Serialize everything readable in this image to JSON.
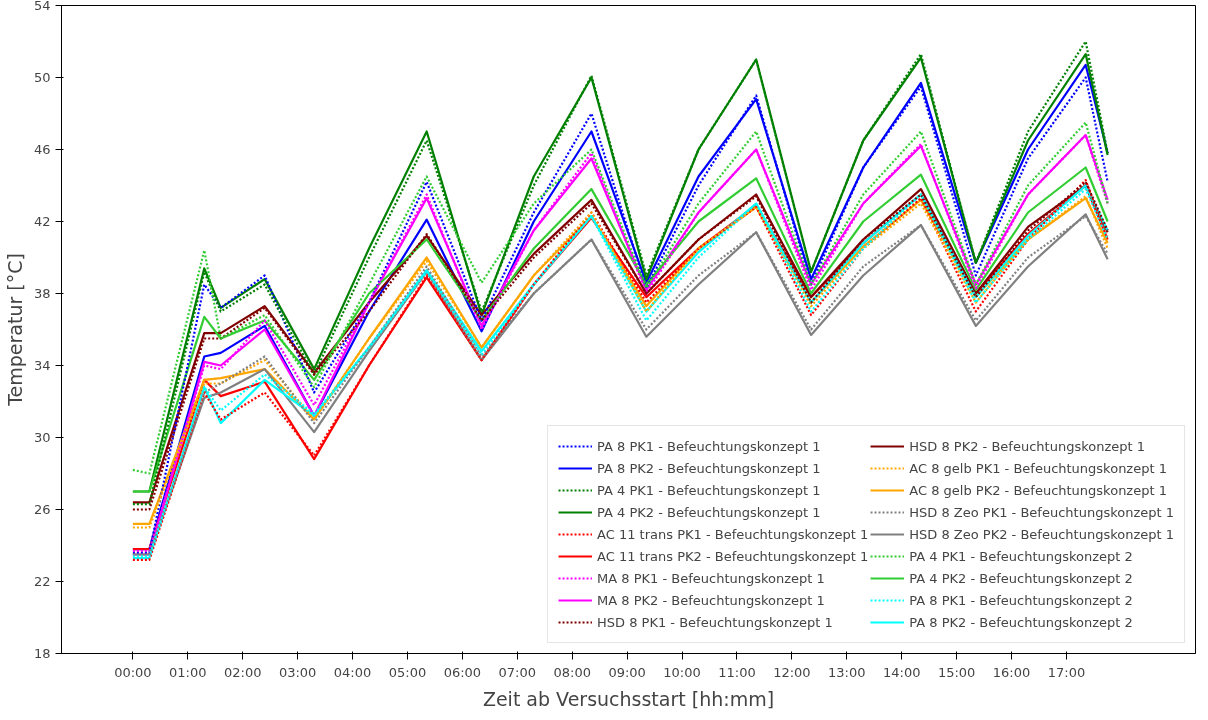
{
  "chart_data": {
    "type": "line",
    "xlabel": "Zeit ab Versuchsstart [hh:mm]",
    "ylabel": "Temperatur [°C]",
    "x": [
      0,
      0.3,
      1.3,
      1.6,
      2.4,
      3.3,
      4.3,
      5.35,
      6.35,
      7.3,
      8.35,
      9.35,
      10.3,
      11.35,
      12.35,
      13.3,
      14.35,
      15.35,
      16.3,
      17.35,
      17.75
    ],
    "xlim": [
      -1.3,
      19.35
    ],
    "ylim": [
      18,
      54
    ],
    "yticks": [
      18,
      22,
      26,
      30,
      34,
      38,
      42,
      46,
      50,
      54
    ],
    "xticks": [
      {
        "value": 0,
        "label": "00:00"
      },
      {
        "value": 1,
        "label": "01:00"
      },
      {
        "value": 2,
        "label": "02:00"
      },
      {
        "value": 3,
        "label": "03:00"
      },
      {
        "value": 4,
        "label": "04:00"
      },
      {
        "value": 5,
        "label": "05:00"
      },
      {
        "value": 6,
        "label": "06:00"
      },
      {
        "value": 7,
        "label": "07:00"
      },
      {
        "value": 8,
        "label": "08:00"
      },
      {
        "value": 9,
        "label": "09:00"
      },
      {
        "value": 10,
        "label": "10:00"
      },
      {
        "value": 11,
        "label": "11:00"
      },
      {
        "value": 12,
        "label": "12:00"
      },
      {
        "value": 13,
        "label": "13:00"
      },
      {
        "value": 14,
        "label": "14:00"
      },
      {
        "value": 15,
        "label": "15:00"
      },
      {
        "value": 16,
        "label": "16:00"
      },
      {
        "value": 17,
        "label": "17:00"
      }
    ],
    "grid": false,
    "legend": "bottom right",
    "line_style": "solid",
    "series": [
      {
        "name": "PA 8 PK1 - Befeuchtungskonzept 1",
        "color": "#0000ff",
        "line_style": "dotted",
        "values": [
          23.6,
          23.6,
          38.5,
          37.2,
          39,
          32.5,
          37.5,
          44.2,
          36.5,
          42.5,
          48,
          38.3,
          44,
          49,
          38.5,
          45,
          49.5,
          39,
          45.5,
          50,
          44.2
        ]
      },
      {
        "name": "PA 8 PK2 - Befeuchtungskonzept 1",
        "color": "#0000ff",
        "values": [
          23.8,
          23.8,
          34.5,
          34.7,
          36.2,
          31.2,
          37,
          42.1,
          35.9,
          42,
          47,
          38.6,
          44.5,
          48.8,
          38.8,
          45,
          49.7,
          39.7,
          46,
          50.7,
          45.8
        ]
      },
      {
        "name": "PA 4 PK1 - Befeuchtungskonzept 1",
        "color": "#008000",
        "line_style": "dotted",
        "values": [
          26.3,
          26.3,
          39.2,
          37,
          38.5,
          33.5,
          40,
          46.5,
          37,
          44,
          50.1,
          39,
          46,
          51,
          39.2,
          46.5,
          51.3,
          39.7,
          47,
          52,
          45.8
        ]
      },
      {
        "name": "PA 4 PK2 - Befeuchtungskonzept 1",
        "color": "#008000",
        "values": [
          27,
          27,
          39.4,
          37.2,
          38.8,
          33.8,
          40.5,
          47,
          36.8,
          44.5,
          50,
          38.8,
          46,
          51,
          39.2,
          46.5,
          51.1,
          39.7,
          46.5,
          51.3,
          45.7
        ]
      },
      {
        "name": "AC 11 trans PK1 - Befeuchtungskonzept 1",
        "color": "#ff0000",
        "line_style": "dotted",
        "values": [
          23.2,
          23.2,
          32.5,
          31,
          32.5,
          29,
          34,
          39,
          34.3,
          38.5,
          42.5,
          37.5,
          40.5,
          42.8,
          36.8,
          40.5,
          43.3,
          37,
          41,
          44.3,
          41
        ]
      },
      {
        "name": "AC 11 trans PK2 - Befeuchtungskonzept 1",
        "color": "#ff0000",
        "values": [
          23.8,
          23.8,
          33.2,
          32.3,
          33.1,
          28.8,
          34,
          38.9,
          34.3,
          38.5,
          42.2,
          37.8,
          40.5,
          42.9,
          37.8,
          40.8,
          43.5,
          38,
          41.3,
          44,
          41
        ]
      },
      {
        "name": "MA 8 PK1 - Befeuchtungskonzept 1",
        "color": "#ff00ff",
        "line_style": "dotted",
        "values": [
          23.7,
          23.7,
          34,
          33.8,
          36.5,
          31.8,
          37.5,
          43.5,
          36,
          41.5,
          45.8,
          38,
          42.5,
          46,
          38.2,
          43,
          46.3,
          38.3,
          43.5,
          46.8,
          43
        ]
      },
      {
        "name": "MA 8 PK2 - Befeuchtungskonzept 1",
        "color": "#ff00ff",
        "values": [
          23.5,
          23.5,
          34.2,
          34,
          36,
          31.2,
          37.5,
          43.3,
          36.2,
          41.5,
          45.5,
          38.2,
          42.5,
          46,
          38.5,
          43,
          46.2,
          38.5,
          43.5,
          46.8,
          43.2
        ]
      },
      {
        "name": "HSD 8 PK1 - Befeuchtungskonzept 1",
        "color": "#800000",
        "line_style": "dotted",
        "values": [
          26,
          26,
          35.5,
          35.5,
          37.2,
          33.5,
          37,
          41.3,
          36.5,
          40,
          43,
          38,
          41,
          43.4,
          37.5,
          41,
          43.5,
          37.8,
          41.5,
          44.2,
          41.5
        ]
      },
      {
        "name": "HSD 8 PK2 - Befeuchtungskonzept 1",
        "color": "#800000",
        "values": [
          26.4,
          26.4,
          35.8,
          35.8,
          37.3,
          33.6,
          37.5,
          41.2,
          36.8,
          40.2,
          43.2,
          38,
          41,
          43.5,
          37.8,
          41,
          43.8,
          38,
          41.7,
          44,
          41.4
        ]
      },
      {
        "name": "AC 8 gelb PK1 - Befeuchtungskonzept 1",
        "color": "#ffa500",
        "line_style": "dotted",
        "values": [
          25,
          25,
          33,
          33,
          34.3,
          31,
          35.5,
          39.8,
          35,
          39,
          42.5,
          37,
          40.5,
          42.8,
          37.3,
          40.5,
          43,
          37.5,
          41,
          43.4,
          40.5
        ]
      },
      {
        "name": "AC 8 gelb PK2 - Befeuchtungskonzept 1",
        "color": "#ffa500",
        "values": [
          25.2,
          25.2,
          33.2,
          33.3,
          33.8,
          31,
          35.5,
          40,
          35,
          39,
          42.3,
          37.3,
          40.5,
          42.8,
          37.5,
          40.6,
          43.2,
          37.8,
          41,
          43.3,
          40.8
        ]
      },
      {
        "name": "HSD 8 Zeo PK1 - Befeuchtungskonzept 1",
        "color": "#808080",
        "line_style": "dotted",
        "values": [
          23.5,
          23.5,
          32.5,
          33,
          34.5,
          30.8,
          35,
          39.5,
          34.5,
          38,
          41,
          36,
          39,
          41.4,
          36,
          39.5,
          41.8,
          36.5,
          40,
          42.3,
          40.2
        ]
      },
      {
        "name": "HSD 8 Zeo PK2 - Befeuchtungskonzept 1",
        "color": "#808080",
        "values": [
          23.5,
          23.5,
          32.2,
          32.5,
          33.8,
          30.3,
          34.8,
          39.2,
          34.3,
          38,
          41,
          35.6,
          38.5,
          41.4,
          35.7,
          39,
          41.8,
          36.2,
          39.5,
          42.4,
          39.9
        ]
      },
      {
        "name": "PA 4 PK1 - Befeuchtungskonzept 2",
        "color": "#32cd32",
        "line_style": "dotted",
        "values": [
          28.2,
          28,
          40.4,
          35.5,
          36.8,
          32.8,
          38.5,
          44.5,
          38.6,
          43,
          46,
          38.3,
          43,
          47,
          38.5,
          43.5,
          47,
          38.5,
          44,
          47.5,
          43
        ]
      },
      {
        "name": "PA 4 PK2 - Befeuchtungskonzept 2",
        "color": "#32cd32",
        "values": [
          27,
          27,
          36.7,
          35.5,
          36.5,
          33.2,
          38,
          41,
          36.5,
          40.5,
          43.8,
          38.5,
          42,
          44.4,
          38,
          42,
          44.6,
          38.2,
          42.5,
          45,
          42
        ]
      },
      {
        "name": "PA 8 PK1 - Befeuchtungskonzept 2",
        "color": "#00ffff",
        "line_style": "dotted",
        "values": [
          23.4,
          23.4,
          32.8,
          31.5,
          33.5,
          31.3,
          35,
          39.2,
          34.6,
          38.5,
          42.3,
          36.5,
          40,
          43,
          37,
          40.5,
          43.5,
          37.5,
          41,
          43.8,
          41
        ]
      },
      {
        "name": "PA 8 PK2 - Befeuchtungskonzept 2",
        "color": "#00ffff",
        "values": [
          23.3,
          23.3,
          32.8,
          30.8,
          33.2,
          31.2,
          35,
          39.3,
          34.8,
          38.5,
          42.3,
          37,
          40.3,
          43,
          37.5,
          40.8,
          43.5,
          37.8,
          41.2,
          44,
          41.5
        ]
      }
    ]
  }
}
